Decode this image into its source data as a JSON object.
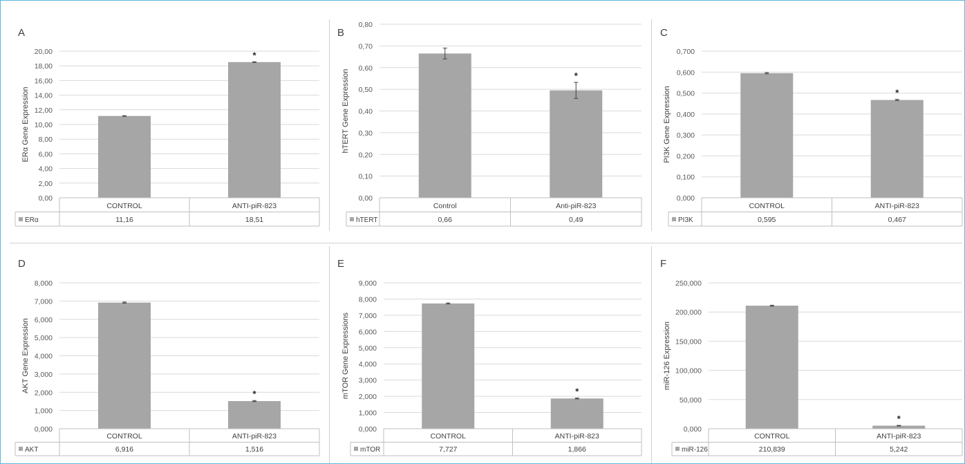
{
  "chart_data": [
    {
      "type": "bar",
      "panel": "A",
      "categories": [
        "CONTROL",
        "ANTI-piR-823"
      ],
      "series": [
        {
          "name": "ERα",
          "values": [
            11.16,
            18.51
          ]
        }
      ],
      "value_labels": [
        "11,16",
        "18,51"
      ],
      "error": [
        0.04,
        0.04
      ],
      "significance": [
        "",
        "*"
      ],
      "ylabel": "ERα  Gene Expression",
      "yticks": [
        "0,00",
        "2,00",
        "4,00",
        "6,00",
        "8,00",
        "10,00",
        "12,00",
        "14,00",
        "16,00",
        "18,00",
        "20,00"
      ],
      "ylim": [
        0,
        20
      ],
      "grid": true,
      "legend": "data-table",
      "color": "#a6a6a6"
    },
    {
      "type": "bar",
      "panel": "B",
      "categories": [
        "Control",
        "Anti-piR-823"
      ],
      "series": [
        {
          "name": "hTERT",
          "values": [
            0.665,
            0.495
          ]
        }
      ],
      "value_labels": [
        "0,66",
        "0,49"
      ],
      "error": [
        0.025,
        0.037
      ],
      "significance": [
        "",
        "*"
      ],
      "ylabel": "hTERT Gene Expression",
      "yticks": [
        "0,00",
        "0,10",
        "0,20",
        "0,30",
        "0,40",
        "0,50",
        "0,60",
        "0,70",
        "0,80"
      ],
      "ylim": [
        0,
        0.8
      ],
      "grid": true,
      "legend": "data-table",
      "color": "#a6a6a6"
    },
    {
      "type": "bar",
      "panel": "C",
      "categories": [
        "CONTROL",
        "ANTI-piR-823"
      ],
      "series": [
        {
          "name": "PI3K",
          "values": [
            0.595,
            0.467
          ]
        }
      ],
      "value_labels": [
        "0,595",
        "0,467"
      ],
      "error": [
        0.003,
        0.003
      ],
      "significance": [
        "",
        "*"
      ],
      "ylabel": "PI3K Gene Expression",
      "yticks": [
        "0,000",
        "0,100",
        "0,200",
        "0,300",
        "0,400",
        "0,500",
        "0,600",
        "0,700"
      ],
      "ylim": [
        0,
        0.7
      ],
      "grid": true,
      "legend": "data-table",
      "color": "#a6a6a6"
    },
    {
      "type": "bar",
      "panel": "D",
      "categories": [
        "CONTROL",
        "ANTI-piR-823"
      ],
      "series": [
        {
          "name": "AKT",
          "values": [
            6.916,
            1.516
          ]
        }
      ],
      "value_labels": [
        "6,916",
        "1,516"
      ],
      "error": [
        0.03,
        0.03
      ],
      "significance": [
        "",
        "*"
      ],
      "ylabel": "AKT Gene Expression",
      "yticks": [
        "0,000",
        "1,000",
        "2,000",
        "3,000",
        "4,000",
        "5,000",
        "6,000",
        "7,000",
        "8,000"
      ],
      "ylim": [
        0,
        8
      ],
      "grid": true,
      "legend": "data-table",
      "color": "#a6a6a6"
    },
    {
      "type": "bar",
      "panel": "E",
      "categories": [
        "CONTROL",
        "ANTI-piR-823"
      ],
      "series": [
        {
          "name": "mTOR",
          "values": [
            7.727,
            1.866
          ]
        }
      ],
      "value_labels": [
        "7,727",
        "1,866"
      ],
      "error": [
        0.03,
        0.03
      ],
      "significance": [
        "",
        "*"
      ],
      "ylabel": "mTOR Gene Expressions",
      "yticks": [
        "0,000",
        "1,000",
        "2,000",
        "3,000",
        "4,000",
        "5,000",
        "6,000",
        "7,000",
        "8,000",
        "9,000"
      ],
      "ylim": [
        0,
        9
      ],
      "grid": true,
      "legend": "data-table",
      "color": "#a6a6a6"
    },
    {
      "type": "bar",
      "panel": "F",
      "categories": [
        "CONTROL",
        "ANTI-piR-823"
      ],
      "series": [
        {
          "name": "miR-126",
          "values": [
            210.839,
            5.242
          ]
        }
      ],
      "value_labels": [
        "210,839",
        "5,242"
      ],
      "error": [
        0.8,
        0.5
      ],
      "significance": [
        "",
        "*"
      ],
      "ylabel": "miR-126 Expression",
      "yticks": [
        "0,000",
        "50,000",
        "100,000",
        "150,000",
        "200,000",
        "250,000"
      ],
      "ylim": [
        0,
        250
      ],
      "grid": true,
      "legend": "data-table",
      "color": "#a6a6a6"
    }
  ]
}
